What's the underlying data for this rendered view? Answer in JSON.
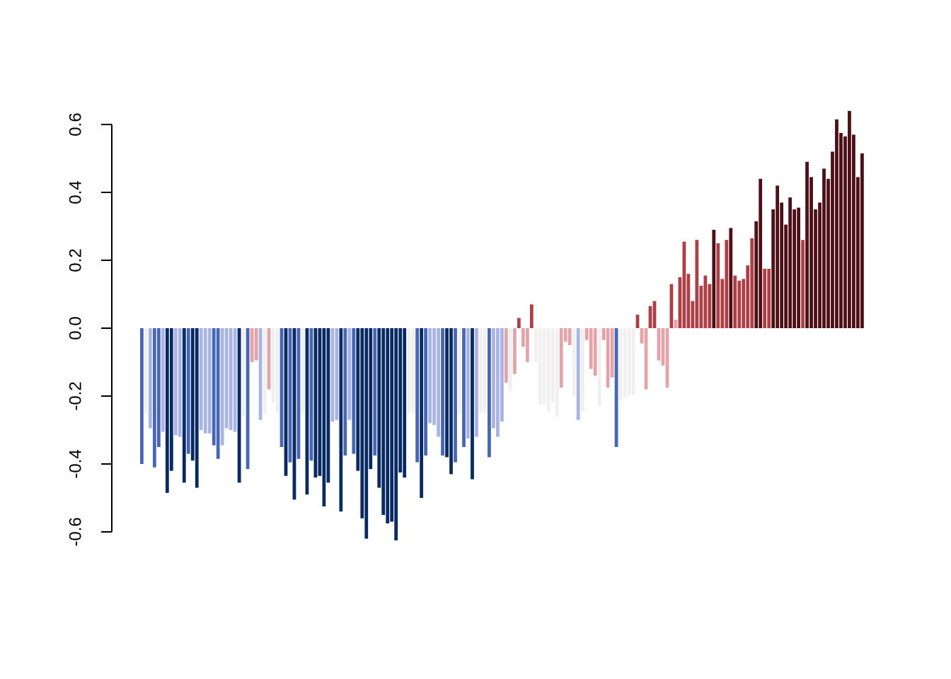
{
  "chart_data": {
    "type": "bar",
    "title": "",
    "xlabel": "",
    "ylabel": "",
    "ylim": [
      -0.6,
      0.6
    ],
    "yticks": [
      -0.6,
      -0.4,
      -0.2,
      0.0,
      0.2,
      0.4,
      0.6
    ],
    "ytick_labels": [
      "-0.6",
      "-0.4",
      "-0.2",
      "0.0",
      "0.2",
      "0.4",
      "0.6"
    ],
    "grid": false,
    "legend": "none",
    "color_scale": {
      "n1": "#082a63",
      "n2": "#4766b3",
      "n3": "#a9b4e2",
      "n4": "#f0f0f0",
      "p1": "#e2a4a8",
      "p2": "#ad4046",
      "p3": "#4c1016"
    },
    "values": [
      -0.4,
      -0.25,
      -0.295,
      -0.41,
      -0.35,
      -0.305,
      -0.485,
      -0.42,
      -0.315,
      -0.32,
      -0.455,
      -0.37,
      -0.39,
      -0.47,
      -0.3,
      -0.31,
      -0.31,
      -0.345,
      -0.385,
      -0.345,
      -0.295,
      -0.3,
      -0.305,
      -0.455,
      -0.26,
      -0.415,
      -0.1,
      -0.095,
      -0.27,
      -0.25,
      -0.18,
      -0.22,
      -0.25,
      -0.35,
      -0.435,
      -0.395,
      -0.505,
      -0.385,
      -0.25,
      -0.49,
      -0.39,
      -0.44,
      -0.435,
      -0.525,
      -0.455,
      -0.275,
      -0.27,
      -0.54,
      -0.375,
      -0.27,
      -0.37,
      -0.42,
      -0.56,
      -0.62,
      -0.415,
      -0.375,
      -0.47,
      -0.55,
      -0.575,
      -0.57,
      -0.625,
      -0.425,
      -0.44,
      -0.25,
      -0.25,
      -0.395,
      -0.5,
      -0.375,
      -0.28,
      -0.285,
      -0.32,
      -0.375,
      -0.38,
      -0.43,
      -0.395,
      -0.25,
      -0.35,
      -0.325,
      -0.445,
      -0.32,
      -0.25,
      -0.25,
      -0.38,
      -0.295,
      -0.32,
      -0.275,
      -0.16,
      -0.185,
      -0.135,
      0.03,
      -0.055,
      -0.1,
      0.07,
      -0.1,
      -0.225,
      -0.225,
      -0.245,
      -0.22,
      -0.26,
      -0.175,
      -0.04,
      -0.05,
      -0.2,
      -0.27,
      -0.245,
      -0.035,
      -0.12,
      -0.14,
      -0.23,
      -0.035,
      -0.175,
      -0.145,
      -0.35,
      -0.215,
      -0.205,
      -0.2,
      -0.195,
      0.04,
      -0.045,
      -0.18,
      0.065,
      0.08,
      -0.095,
      -0.11,
      -0.175,
      0.13,
      0.025,
      0.15,
      0.255,
      0.16,
      0.08,
      0.26,
      0.125,
      0.155,
      0.13,
      0.29,
      0.25,
      0.145,
      0.26,
      0.295,
      0.155,
      0.14,
      0.145,
      0.185,
      0.265,
      0.315,
      0.44,
      0.175,
      0.175,
      0.35,
      0.42,
      0.37,
      0.305,
      0.385,
      0.35,
      0.355,
      0.26,
      0.49,
      0.445,
      0.35,
      0.37,
      0.47,
      0.44,
      0.52,
      0.615,
      0.575,
      0.565,
      0.64,
      0.57,
      0.445,
      0.515
    ],
    "bar_colors": [
      "n2",
      "n4",
      "n3",
      "n2",
      "n2",
      "n3",
      "n1",
      "n1",
      "n3",
      "n3",
      "n1",
      "n2",
      "n1",
      "n1",
      "n3",
      "n3",
      "n3",
      "n2",
      "n2",
      "n3",
      "n3",
      "n3",
      "n3",
      "n1",
      "n4",
      "n2",
      "p1",
      "p1",
      "n3",
      "n4",
      "p1",
      "n4",
      "n4",
      "n2",
      "n1",
      "n2",
      "n1",
      "n2",
      "n4",
      "n1",
      "n2",
      "n1",
      "n1",
      "n1",
      "n1",
      "n3",
      "n3",
      "n1",
      "n2",
      "n3",
      "n2",
      "n1",
      "n1",
      "n1",
      "n1",
      "n2",
      "n1",
      "n1",
      "n1",
      "n1",
      "n1",
      "n1",
      "n1",
      "n4",
      "n4",
      "n2",
      "n1",
      "n2",
      "n3",
      "n3",
      "n3",
      "n2",
      "n1",
      "n1",
      "n2",
      "n4",
      "n2",
      "n3",
      "n1",
      "n3",
      "n4",
      "n4",
      "n2",
      "n3",
      "n3",
      "n3",
      "p1",
      "n4",
      "p1",
      "p2",
      "p1",
      "p1",
      "p2",
      "n4",
      "n4",
      "n4",
      "n4",
      "n4",
      "n4",
      "p1",
      "p1",
      "p1",
      "n4",
      "n3",
      "n4",
      "p1",
      "p1",
      "p1",
      "n4",
      "p1",
      "p1",
      "p1",
      "n2",
      "n4",
      "n4",
      "n4",
      "n4",
      "p2",
      "p1",
      "p1",
      "p2",
      "p2",
      "p1",
      "p1",
      "p1",
      "p2",
      "p1",
      "p2",
      "p2",
      "p2",
      "p2",
      "p2",
      "p2",
      "p2",
      "p2",
      "p3",
      "p2",
      "p2",
      "p2",
      "p3",
      "p2",
      "p2",
      "p2",
      "p2",
      "p2",
      "p3",
      "p3",
      "p2",
      "p2",
      "p3",
      "p3",
      "p3",
      "p3",
      "p3",
      "p3",
      "p3",
      "p2",
      "p3",
      "p3",
      "p3",
      "p3",
      "p3",
      "p3",
      "p3",
      "p3",
      "p3",
      "p3",
      "p3",
      "p3",
      "p3",
      "p3"
    ]
  }
}
